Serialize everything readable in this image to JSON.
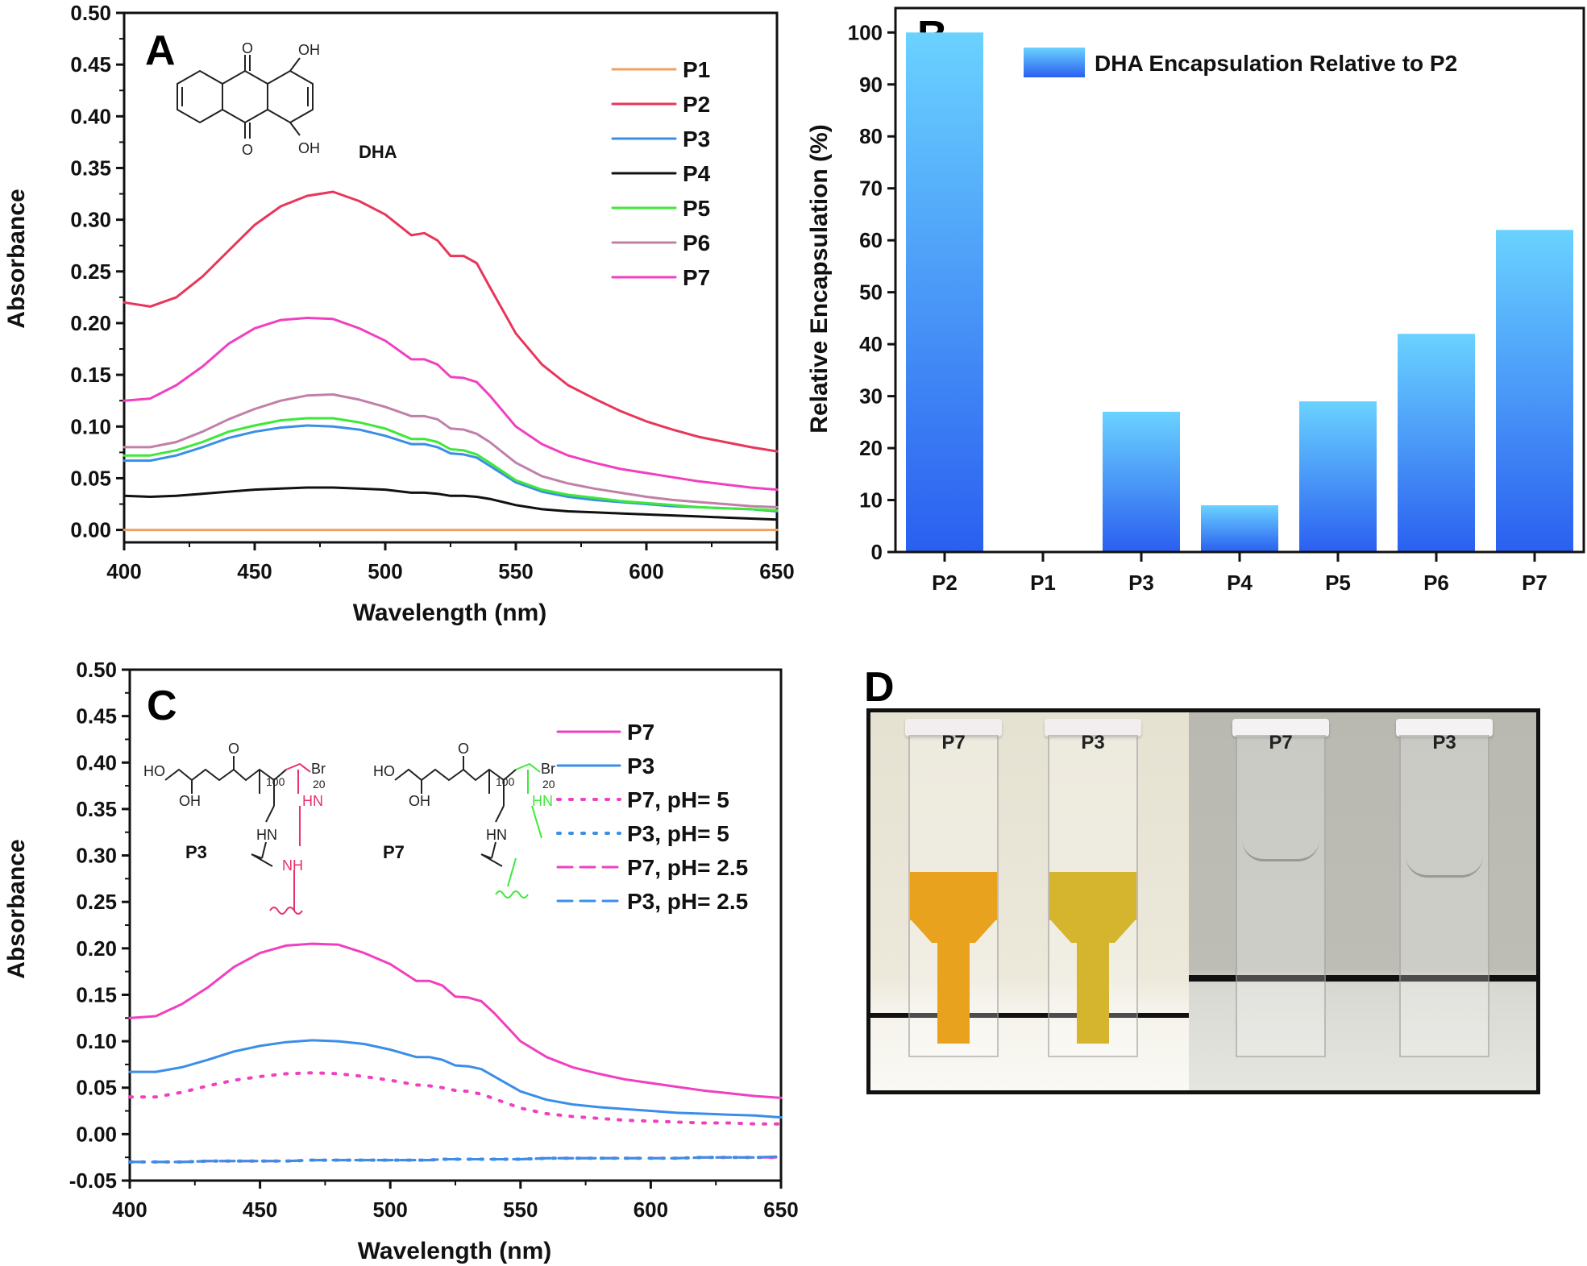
{
  "chart_data": [
    {
      "panel": "A",
      "type": "line",
      "xlabel": "Wavelength (nm)",
      "ylabel": "Absorbance",
      "xlim": [
        400,
        650
      ],
      "ylim": [
        -0.012,
        0.5
      ],
      "xticks": [
        400,
        450,
        500,
        550,
        600,
        650
      ],
      "xtick_labels": [
        "400",
        "450",
        "500",
        "550",
        "600",
        "650"
      ],
      "yticks": [
        0,
        0.05,
        0.1,
        0.15,
        0.2,
        0.25,
        0.3,
        0.35,
        0.4,
        0.45,
        0.5
      ],
      "ytick_labels": [
        "0.00",
        "0.05",
        "0.10",
        "0.15",
        "0.20",
        "0.25",
        "0.30",
        "0.35",
        "0.40",
        "0.45",
        "0.50"
      ],
      "grid": false,
      "legend_position": "top-right",
      "annotation": "DHA",
      "structure_labels": {
        "o_top": "O",
        "oh_top": "OH",
        "o_bottom": "O",
        "oh_bottom": "OH"
      },
      "x": [
        400,
        410,
        420,
        430,
        440,
        450,
        460,
        470,
        480,
        490,
        500,
        510,
        515,
        520,
        525,
        530,
        535,
        540,
        550,
        560,
        570,
        580,
        590,
        600,
        610,
        620,
        630,
        640,
        650
      ],
      "series": [
        {
          "name": "P1",
          "color": "#f0a060",
          "style": "solid",
          "values": [
            0,
            0,
            0,
            0,
            0,
            0,
            0,
            0,
            0,
            0,
            0,
            0,
            0,
            0,
            0,
            0,
            0,
            0,
            0,
            0,
            0,
            0,
            0,
            0,
            0,
            0,
            0,
            0,
            0
          ]
        },
        {
          "name": "P2",
          "color": "#e8365a",
          "style": "solid",
          "values": [
            0.22,
            0.216,
            0.225,
            0.245,
            0.27,
            0.295,
            0.313,
            0.323,
            0.327,
            0.318,
            0.305,
            0.285,
            0.287,
            0.28,
            0.265,
            0.265,
            0.258,
            0.235,
            0.19,
            0.16,
            0.14,
            0.127,
            0.115,
            0.105,
            0.097,
            0.09,
            0.085,
            0.08,
            0.076
          ]
        },
        {
          "name": "P3",
          "color": "#3a8ee8",
          "style": "solid",
          "values": [
            0.067,
            0.067,
            0.072,
            0.08,
            0.089,
            0.095,
            0.099,
            0.101,
            0.1,
            0.097,
            0.091,
            0.083,
            0.083,
            0.08,
            0.074,
            0.073,
            0.07,
            0.062,
            0.046,
            0.037,
            0.032,
            0.029,
            0.027,
            0.025,
            0.023,
            0.022,
            0.021,
            0.02,
            0.018
          ]
        },
        {
          "name": "P4",
          "color": "#111111",
          "style": "solid",
          "values": [
            0.033,
            0.032,
            0.033,
            0.035,
            0.037,
            0.039,
            0.04,
            0.041,
            0.041,
            0.04,
            0.039,
            0.036,
            0.036,
            0.035,
            0.033,
            0.033,
            0.032,
            0.03,
            0.024,
            0.02,
            0.018,
            0.017,
            0.016,
            0.015,
            0.014,
            0.013,
            0.012,
            0.011,
            0.01
          ]
        },
        {
          "name": "P5",
          "color": "#3ee83a",
          "style": "solid",
          "values": [
            0.072,
            0.072,
            0.077,
            0.085,
            0.095,
            0.101,
            0.106,
            0.108,
            0.108,
            0.104,
            0.098,
            0.088,
            0.088,
            0.085,
            0.078,
            0.077,
            0.073,
            0.065,
            0.048,
            0.039,
            0.034,
            0.031,
            0.028,
            0.026,
            0.024,
            0.022,
            0.021,
            0.02,
            0.019
          ]
        },
        {
          "name": "P6",
          "color": "#c080a8",
          "style": "solid",
          "values": [
            0.08,
            0.08,
            0.085,
            0.095,
            0.107,
            0.117,
            0.125,
            0.13,
            0.131,
            0.126,
            0.119,
            0.11,
            0.11,
            0.107,
            0.098,
            0.097,
            0.093,
            0.085,
            0.065,
            0.052,
            0.045,
            0.04,
            0.036,
            0.032,
            0.029,
            0.027,
            0.025,
            0.023,
            0.022
          ]
        },
        {
          "name": "P7",
          "color": "#f040c0",
          "style": "solid",
          "values": [
            0.125,
            0.127,
            0.14,
            0.158,
            0.18,
            0.195,
            0.203,
            0.205,
            0.204,
            0.195,
            0.183,
            0.165,
            0.165,
            0.16,
            0.148,
            0.147,
            0.143,
            0.13,
            0.1,
            0.083,
            0.072,
            0.065,
            0.059,
            0.055,
            0.051,
            0.047,
            0.044,
            0.041,
            0.039
          ]
        }
      ]
    },
    {
      "panel": "B",
      "type": "bar",
      "xlabel": "",
      "ylabel": "Relative Encapsulation (%)",
      "ylim": [
        0,
        104.7
      ],
      "yticks": [
        0,
        10,
        20,
        30,
        40,
        50,
        60,
        70,
        80,
        90,
        100
      ],
      "ytick_labels": [
        "0",
        "10",
        "20",
        "30",
        "40",
        "50",
        "60",
        "70",
        "80",
        "90",
        "100"
      ],
      "categories": [
        "P2",
        "P1",
        "P3",
        "P4",
        "P5",
        "P6",
        "P7"
      ],
      "series": [
        {
          "name": "DHA Encapsulation Relative to P2",
          "values": [
            100,
            0,
            27,
            9,
            29,
            42,
            62
          ]
        }
      ],
      "gradient_colors": [
        "#6ad2ff",
        "#2a5ff0"
      ],
      "grid": false,
      "legend_position": "top-right"
    },
    {
      "panel": "C",
      "type": "line",
      "xlabel": "Wavelength (nm)",
      "ylabel": "Absorbance",
      "xlim": [
        400,
        650
      ],
      "ylim": [
        -0.05,
        0.5
      ],
      "xticks": [
        400,
        450,
        500,
        550,
        600,
        650
      ],
      "xtick_labels": [
        "400",
        "450",
        "500",
        "550",
        "600",
        "650"
      ],
      "yticks": [
        -0.05,
        0,
        0.05,
        0.1,
        0.15,
        0.2,
        0.25,
        0.3,
        0.35,
        0.4,
        0.45,
        0.5
      ],
      "ytick_labels": [
        "-0.05",
        "0.00",
        "0.05",
        "0.10",
        "0.15",
        "0.20",
        "0.25",
        "0.30",
        "0.35",
        "0.40",
        "0.45",
        "0.50"
      ],
      "grid": false,
      "legend_position": "top-right",
      "structure_names": [
        "P3",
        "P7"
      ],
      "structure_labels": {
        "ho": "HO",
        "oh": "OH",
        "o": "O",
        "hn": "HN",
        "nh": "NH",
        "br": "Br",
        "n100": "100",
        "n20": "20"
      },
      "x": [
        400,
        410,
        420,
        430,
        440,
        450,
        460,
        470,
        480,
        490,
        500,
        510,
        515,
        520,
        525,
        530,
        535,
        540,
        550,
        560,
        570,
        580,
        590,
        600,
        610,
        620,
        630,
        640,
        650
      ],
      "series": [
        {
          "name": "P7",
          "color": "#f040c0",
          "style": "solid",
          "values": [
            0.125,
            0.127,
            0.14,
            0.158,
            0.18,
            0.195,
            0.203,
            0.205,
            0.204,
            0.195,
            0.183,
            0.165,
            0.165,
            0.16,
            0.148,
            0.147,
            0.143,
            0.13,
            0.1,
            0.083,
            0.072,
            0.065,
            0.059,
            0.055,
            0.051,
            0.047,
            0.044,
            0.041,
            0.039
          ]
        },
        {
          "name": "P3",
          "color": "#3a8ee8",
          "style": "solid",
          "values": [
            0.067,
            0.067,
            0.072,
            0.08,
            0.089,
            0.095,
            0.099,
            0.101,
            0.1,
            0.097,
            0.091,
            0.083,
            0.083,
            0.08,
            0.074,
            0.073,
            0.07,
            0.062,
            0.046,
            0.037,
            0.032,
            0.029,
            0.027,
            0.025,
            0.023,
            0.022,
            0.021,
            0.02,
            0.018
          ]
        },
        {
          "name": "P7, pH= 5",
          "color": "#f040c0",
          "style": "dotted",
          "values": [
            0.04,
            0.04,
            0.045,
            0.052,
            0.058,
            0.062,
            0.065,
            0.066,
            0.065,
            0.062,
            0.058,
            0.053,
            0.052,
            0.05,
            0.047,
            0.046,
            0.043,
            0.038,
            0.028,
            0.022,
            0.019,
            0.017,
            0.015,
            0.014,
            0.013,
            0.012,
            0.012,
            0.011,
            0.011
          ]
        },
        {
          "name": "P3, pH= 5",
          "color": "#3a8ee8",
          "style": "dotted",
          "values": [
            -0.03,
            -0.03,
            -0.03,
            -0.029,
            -0.029,
            -0.029,
            -0.029,
            -0.028,
            -0.028,
            -0.028,
            -0.028,
            -0.028,
            -0.028,
            -0.027,
            -0.027,
            -0.027,
            -0.027,
            -0.027,
            -0.027,
            -0.026,
            -0.026,
            -0.026,
            -0.026,
            -0.026,
            -0.026,
            -0.025,
            -0.025,
            -0.025,
            -0.025
          ]
        },
        {
          "name": "P7, pH= 2.5",
          "color": "#f040c0",
          "style": "dashed",
          "values": [
            -0.03,
            -0.03,
            -0.03,
            -0.029,
            -0.029,
            -0.029,
            -0.029,
            -0.028,
            -0.028,
            -0.028,
            -0.028,
            -0.028,
            -0.028,
            -0.027,
            -0.027,
            -0.027,
            -0.027,
            -0.027,
            -0.027,
            -0.026,
            -0.026,
            -0.026,
            -0.026,
            -0.026,
            -0.026,
            -0.025,
            -0.025,
            -0.025,
            -0.025
          ]
        },
        {
          "name": "P3, pH= 2.5",
          "color": "#3a8ee8",
          "style": "dashed",
          "values": [
            -0.03,
            -0.03,
            -0.03,
            -0.029,
            -0.029,
            -0.029,
            -0.029,
            -0.028,
            -0.028,
            -0.028,
            -0.028,
            -0.028,
            -0.028,
            -0.027,
            -0.027,
            -0.027,
            -0.027,
            -0.027,
            -0.027,
            -0.026,
            -0.026,
            -0.026,
            -0.026,
            -0.026,
            -0.026,
            -0.025,
            -0.025,
            -0.025,
            -0.024
          ]
        }
      ]
    }
  ],
  "photo": {
    "panel": "D",
    "cuvettes": [
      {
        "label": "P7",
        "liquid": "#e9a21e"
      },
      {
        "label": "P3",
        "liquid": "#d6b52e"
      },
      {
        "label": "P7",
        "liquid": null
      },
      {
        "label": "P3",
        "liquid": null
      }
    ]
  }
}
